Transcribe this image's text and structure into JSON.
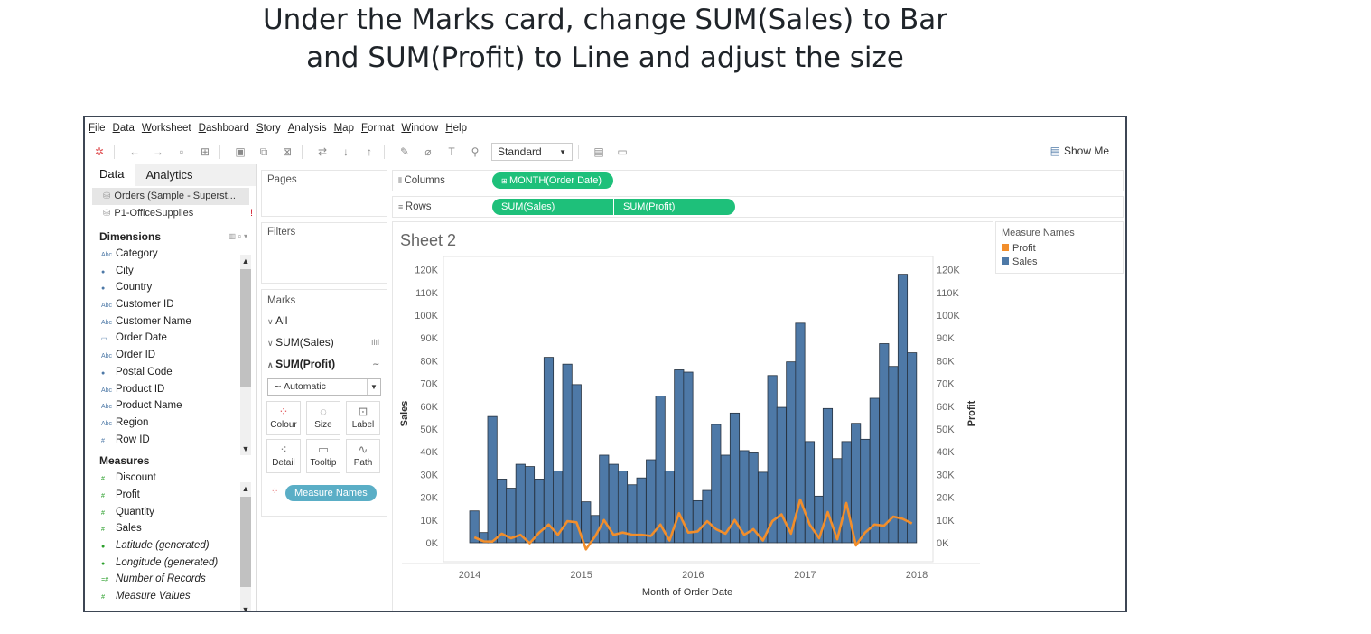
{
  "caption": {
    "line1": "Under the Marks card, change SUM(Sales) to Bar",
    "line2": "and SUM(Profit) to Line and adjust the size"
  },
  "menu": [
    "File",
    "Data",
    "Worksheet",
    "Dashboard",
    "Story",
    "Analysis",
    "Map",
    "Format",
    "Window",
    "Help"
  ],
  "toolbar": {
    "fit_value": "Standard",
    "show_me": "Show Me"
  },
  "data_pane": {
    "tab_data": "Data",
    "tab_analytics": "Analytics",
    "sources": [
      "Orders (Sample - Superst...",
      "P1-OfficeSupplies"
    ],
    "dimensions_title": "Dimensions",
    "dimensions": [
      "Category",
      "City",
      "Country",
      "Customer ID",
      "Customer Name",
      "Order Date",
      "Order ID",
      "Postal Code",
      "Product ID",
      "Product Name",
      "Region",
      "Row ID"
    ],
    "measures_title": "Measures",
    "measures": [
      "Discount",
      "Profit",
      "Quantity",
      "Sales",
      "Latitude (generated)",
      "Longitude (generated)",
      "Number of Records",
      "Measure Values"
    ]
  },
  "cards": {
    "pages": "Pages",
    "filters": "Filters",
    "marks": "Marks",
    "marks_all": "All",
    "marks_sales": "SUM(Sales)",
    "marks_profit": "SUM(Profit)",
    "mark_type": "Automatic",
    "buttons": [
      "Colour",
      "Size",
      "Label",
      "Detail",
      "Tooltip",
      "Path"
    ],
    "color_pill": "Measure Names"
  },
  "shelves": {
    "columns_label": "Columns",
    "columns_pill": "MONTH(Order Date)",
    "rows_label": "Rows",
    "rows_pills": [
      "SUM(Sales)",
      "SUM(Profit)"
    ]
  },
  "sheet": {
    "title": "Sheet 2"
  },
  "legend": {
    "title": "Measure Names",
    "items": [
      {
        "label": "Profit",
        "color": "#f28e2b"
      },
      {
        "label": "Sales",
        "color": "#4e79a7"
      }
    ]
  },
  "chart_data": {
    "type": "bar",
    "xlabel": "Month of Order Date",
    "ylabel": "Sales",
    "y2label": "Profit",
    "ylim": [
      0,
      120000
    ],
    "y_ticks": [
      "0K",
      "10K",
      "20K",
      "30K",
      "40K",
      "50K",
      "60K",
      "70K",
      "80K",
      "90K",
      "100K",
      "110K",
      "120K"
    ],
    "x_ticks": [
      "2014",
      "2015",
      "2016",
      "2017",
      "2018"
    ],
    "x": [
      "2014-01",
      "2014-02",
      "2014-03",
      "2014-04",
      "2014-05",
      "2014-06",
      "2014-07",
      "2014-08",
      "2014-09",
      "2014-10",
      "2014-11",
      "2014-12",
      "2015-01",
      "2015-02",
      "2015-03",
      "2015-04",
      "2015-05",
      "2015-06",
      "2015-07",
      "2015-08",
      "2015-09",
      "2015-10",
      "2015-11",
      "2015-12",
      "2016-01",
      "2016-02",
      "2016-03",
      "2016-04",
      "2016-05",
      "2016-06",
      "2016-07",
      "2016-08",
      "2016-09",
      "2016-10",
      "2016-11",
      "2016-12",
      "2017-01",
      "2017-02",
      "2017-03",
      "2017-04",
      "2017-05",
      "2017-06",
      "2017-07",
      "2017-08",
      "2017-09",
      "2017-10",
      "2017-11",
      "2017-12"
    ],
    "series": [
      {
        "name": "Sales",
        "chart": "bar",
        "color": "#4e79a7",
        "values": [
          14000,
          4500,
          55500,
          28000,
          24000,
          34500,
          33500,
          28000,
          81500,
          31500,
          78500,
          69500,
          18000,
          12000,
          38500,
          34500,
          31500,
          25500,
          28500,
          36500,
          64500,
          31500,
          76000,
          75000,
          18500,
          23000,
          52000,
          38500,
          57000,
          40500,
          39500,
          31000,
          73500,
          59500,
          79500,
          96500,
          44500,
          20500,
          59000,
          37000,
          44500,
          52500,
          45500,
          63500,
          87500,
          77500,
          118000,
          83500
        ]
      },
      {
        "name": "Profit",
        "chart": "line",
        "color": "#f28e2b",
        "values": [
          2400,
          600,
          500,
          4000,
          2000,
          3500,
          -200,
          4500,
          8000,
          3500,
          9500,
          9000,
          -2900,
          3000,
          10000,
          3500,
          4500,
          3500,
          3500,
          3000,
          8000,
          1000,
          13000,
          4500,
          5000,
          9500,
          6000,
          4000,
          10000,
          3500,
          6000,
          1000,
          9500,
          12500,
          4000,
          19000,
          8000,
          2000,
          13500,
          1500,
          17500,
          -1200,
          4500,
          8000,
          7500,
          11500,
          10500,
          8500
        ]
      }
    ]
  }
}
